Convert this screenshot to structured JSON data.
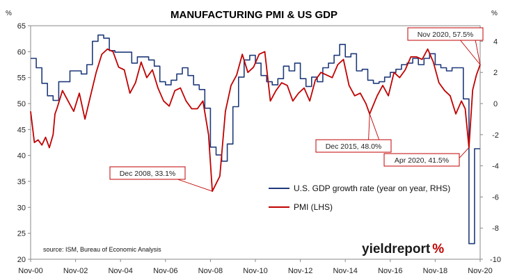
{
  "chart_data": {
    "type": "line",
    "title": "MANUFACTURING PMI & US GDP",
    "left_axis": {
      "unit": "%",
      "range": [
        20,
        65
      ],
      "ticks": [
        "20",
        "25",
        "30",
        "35",
        "40",
        "45",
        "50",
        "55",
        "60",
        "65"
      ]
    },
    "right_axis": {
      "unit": "%",
      "range": [
        -10,
        5
      ],
      "ticks": [
        "-10",
        "-8",
        "-6",
        "-4",
        "-2",
        "0",
        "2",
        "4"
      ]
    },
    "x_axis": {
      "range": [
        2000.833,
        2020.833
      ],
      "ticks": [
        "Nov-00",
        "Nov-02",
        "Nov-04",
        "Nov-06",
        "Nov-08",
        "Nov-10",
        "Nov-12",
        "Nov-14",
        "Nov-16",
        "Nov-18",
        "Nov-20"
      ]
    },
    "grid": false,
    "legend_position": "bottom-right",
    "source_note": "source: ISM, Bureau of Economic Analysis",
    "brand": {
      "text": "yieldreport",
      "mark": "%"
    },
    "series": [
      {
        "name": "U.S. GDP growth rate (year on year, RHS)",
        "color": "#1f3a7a",
        "axis": "right",
        "step": true,
        "x": [
          2000.833,
          2001.083,
          2001.333,
          2001.583,
          2001.833,
          2002.083,
          2002.333,
          2002.583,
          2002.833,
          2003.083,
          2003.333,
          2003.583,
          2003.833,
          2004.083,
          2004.333,
          2004.583,
          2004.833,
          2005.083,
          2005.333,
          2005.583,
          2005.833,
          2006.083,
          2006.333,
          2006.583,
          2006.833,
          2007.083,
          2007.333,
          2007.583,
          2007.833,
          2008.083,
          2008.333,
          2008.583,
          2008.833,
          2009.083,
          2009.333,
          2009.583,
          2009.833,
          2010.083,
          2010.333,
          2010.583,
          2010.833,
          2011.083,
          2011.333,
          2011.583,
          2011.833,
          2012.083,
          2012.333,
          2012.583,
          2012.833,
          2013.083,
          2013.333,
          2013.583,
          2013.833,
          2014.083,
          2014.333,
          2014.583,
          2014.833,
          2015.083,
          2015.333,
          2015.583,
          2015.833,
          2016.083,
          2016.333,
          2016.583,
          2016.833,
          2017.083,
          2017.333,
          2017.583,
          2017.833,
          2018.083,
          2018.333,
          2018.583,
          2018.833,
          2019.083,
          2019.333,
          2019.583,
          2019.833,
          2020.083,
          2020.333,
          2020.583,
          2020.833
        ],
        "values": [
          2.9,
          2.3,
          1.3,
          0.5,
          0.2,
          1.4,
          1.4,
          2.1,
          2.1,
          1.9,
          2.5,
          4.0,
          4.4,
          4.2,
          3.4,
          3.3,
          3.3,
          3.3,
          2.6,
          3.0,
          3.0,
          2.8,
          2.4,
          1.4,
          1.2,
          1.5,
          1.9,
          2.3,
          1.8,
          1.2,
          0.9,
          -0.3,
          -2.8,
          -3.3,
          -3.7,
          -2.6,
          -0.2,
          1.7,
          2.8,
          3.1,
          2.6,
          1.8,
          1.4,
          1.2,
          1.6,
          2.4,
          2.1,
          2.6,
          1.6,
          1.1,
          1.7,
          1.4,
          2.3,
          2.6,
          3.1,
          3.8,
          3.0,
          3.2,
          2.1,
          2.2,
          1.5,
          1.3,
          1.4,
          1.7,
          2.0,
          2.2,
          2.5,
          2.6,
          2.9,
          2.5,
          2.9,
          3.2,
          2.5,
          2.3,
          2.1,
          2.3,
          2.3,
          0.3,
          -9.0,
          -2.9,
          -2.9
        ]
      },
      {
        "name": "PMI (LHS)",
        "color": "#c00000",
        "axis": "left",
        "step": false,
        "x": [
          2000.833,
          2001.0,
          2001.167,
          2001.333,
          2001.5,
          2001.667,
          2001.833,
          2001.917,
          2002.0,
          2002.25,
          2002.5,
          2002.75,
          2003.0,
          2003.25,
          2003.5,
          2003.75,
          2004.0,
          2004.25,
          2004.5,
          2004.75,
          2005.0,
          2005.25,
          2005.5,
          2005.75,
          2006.0,
          2006.25,
          2006.5,
          2006.75,
          2007.0,
          2007.25,
          2007.5,
          2007.75,
          2008.0,
          2008.25,
          2008.5,
          2008.75,
          2008.917,
          2009.25,
          2009.5,
          2009.75,
          2010.0,
          2010.25,
          2010.5,
          2010.75,
          2011.0,
          2011.25,
          2011.5,
          2011.75,
          2012.0,
          2012.25,
          2012.5,
          2012.75,
          2013.0,
          2013.25,
          2013.5,
          2013.75,
          2014.0,
          2014.25,
          2014.5,
          2014.75,
          2015.0,
          2015.25,
          2015.5,
          2015.75,
          2015.917,
          2016.25,
          2016.5,
          2016.75,
          2017.0,
          2017.25,
          2017.5,
          2017.75,
          2018.0,
          2018.25,
          2018.5,
          2018.75,
          2019.0,
          2019.25,
          2019.5,
          2019.75,
          2020.0,
          2020.167,
          2020.333,
          2020.5,
          2020.667,
          2020.833
        ],
        "values": [
          48.5,
          42.5,
          43.0,
          42.0,
          43.5,
          41.5,
          44.0,
          48.0,
          49.0,
          52.5,
          50.5,
          48.5,
          52.0,
          47.0,
          51.5,
          56.0,
          59.5,
          60.5,
          60.0,
          57.0,
          56.5,
          52.0,
          54.0,
          58.0,
          55.0,
          56.5,
          53.0,
          50.5,
          49.5,
          52.5,
          53.0,
          50.5,
          49.0,
          49.0,
          50.5,
          44.0,
          33.1,
          36.0,
          48.5,
          53.5,
          55.5,
          59.5,
          56.0,
          57.0,
          59.5,
          60.0,
          50.5,
          52.5,
          54.0,
          53.5,
          50.5,
          52.0,
          53.0,
          50.5,
          54.5,
          56.0,
          55.5,
          55.0,
          57.5,
          58.5,
          53.5,
          51.5,
          52.0,
          50.0,
          48.0,
          51.5,
          53.5,
          51.5,
          56.0,
          55.0,
          56.5,
          59.0,
          59.0,
          58.5,
          60.5,
          58.0,
          54.0,
          52.5,
          51.5,
          48.0,
          50.5,
          49.0,
          41.5,
          52.6,
          55.5,
          57.5
        ]
      }
    ],
    "annotations": [
      {
        "text": "Dec 2008, 33.1%",
        "point_x": 2008.917,
        "point_y": 33.1,
        "axis": "left"
      },
      {
        "text": "Dec 2015, 48.0%",
        "point_x": 2015.917,
        "point_y": 48.0,
        "axis": "left"
      },
      {
        "text": "Apr 2020, 41.5%",
        "point_x": 2020.333,
        "point_y": 41.5,
        "axis": "left"
      },
      {
        "text": "Nov 2020, 57.5%",
        "point_x": 2020.833,
        "point_y": 57.5,
        "axis": "left"
      }
    ]
  }
}
